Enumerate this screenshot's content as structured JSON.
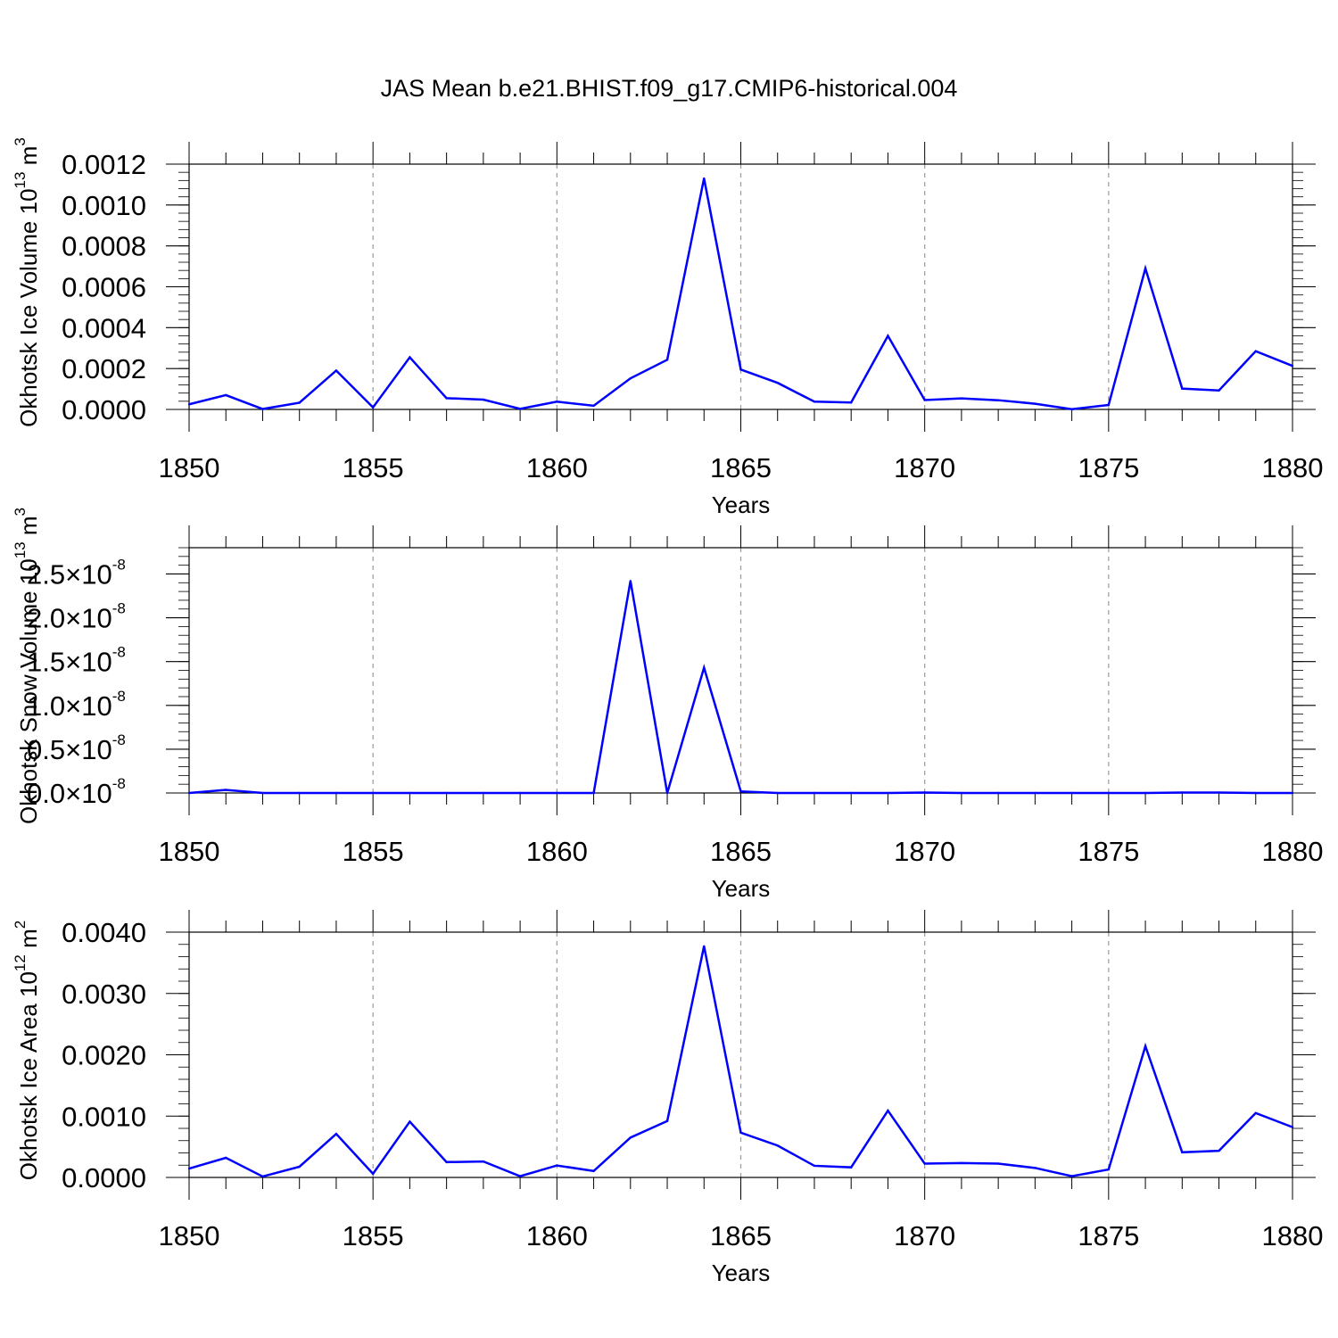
{
  "title": "JAS Mean b.e21.BHIST.f09_g17.CMIP6-historical.004",
  "colors": {
    "series": "#0000ff",
    "grid": "#9a9a9a",
    "axis": "#000000"
  },
  "chart_data": [
    {
      "type": "line",
      "ylabel_main": "Okhotsk Ice Volume 10",
      "ylabel_exp": "13",
      "ylabel_unit": " m",
      "ylabel_unit_exp": "3",
      "xlabel": "Years",
      "xlim": [
        1850,
        1880
      ],
      "ylim": [
        0,
        0.0012
      ],
      "xticks": [
        "1850",
        "1855",
        "1860",
        "1865",
        "1870",
        "1875",
        "1880"
      ],
      "xtick_values": [
        1850,
        1855,
        1860,
        1865,
        1870,
        1875,
        1880
      ],
      "yticks": [
        "0.0000",
        "0.0002",
        "0.0004",
        "0.0006",
        "0.0008",
        "0.0010",
        "0.0012"
      ],
      "ytick_values": [
        0,
        0.0002,
        0.0004,
        0.0006,
        0.0008,
        0.001,
        0.0012
      ],
      "x": [
        1850,
        1851,
        1852,
        1853,
        1854,
        1855,
        1856,
        1857,
        1858,
        1859,
        1860,
        1861,
        1862,
        1863,
        1864,
        1865,
        1866,
        1867,
        1868,
        1869,
        1870,
        1871,
        1872,
        1873,
        1874,
        1875,
        1876,
        1877,
        1878,
        1879,
        1880
      ],
      "values": [
        2.5e-05,
        7e-05,
        2e-06,
        3.3e-05,
        0.00019,
        1e-05,
        0.000255,
        5.5e-05,
        4.8e-05,
        3e-06,
        3.8e-05,
        1.8e-05,
        0.000152,
        0.000243,
        0.00113,
        0.000195,
        0.00013,
        3.8e-05,
        3.4e-05,
        0.00036,
        4.6e-05,
        5.4e-05,
        4.5e-05,
        2.8e-05,
        1e-06,
        2.2e-05,
        0.00069,
        0.000102,
        9.3e-05,
        0.000285,
        0.000213
      ]
    },
    {
      "type": "line",
      "ylabel_main": "Okhotsk Snow Volume 10",
      "ylabel_exp": "13",
      "ylabel_unit": " m",
      "ylabel_unit_exp": "3",
      "xlabel": "Years",
      "xlim": [
        1850,
        1880
      ],
      "ylim": [
        0,
        2.8e-08
      ],
      "xticks": [
        "1850",
        "1855",
        "1860",
        "1865",
        "1870",
        "1875",
        "1880"
      ],
      "xtick_values": [
        1850,
        1855,
        1860,
        1865,
        1870,
        1875,
        1880
      ],
      "yticks": [
        "0.0",
        "0.5",
        "1.0",
        "1.5",
        "2.0",
        "2.5"
      ],
      "ytick_values": [
        0,
        5e-09,
        1e-08,
        1.5e-08,
        2e-08,
        2.5e-08
      ],
      "ytick_sci_mult": "×10",
      "ytick_sci_exp": "-8",
      "x": [
        1850,
        1851,
        1852,
        1853,
        1854,
        1855,
        1856,
        1857,
        1858,
        1859,
        1860,
        1861,
        1862,
        1863,
        1864,
        1865,
        1866,
        1867,
        1868,
        1869,
        1870,
        1871,
        1872,
        1873,
        1874,
        1875,
        1876,
        1877,
        1878,
        1879,
        1880
      ],
      "values": [
        0,
        3.5e-10,
        0,
        0,
        0,
        0,
        0,
        0,
        0,
        0,
        0,
        0,
        2.42e-08,
        0,
        1.43e-08,
        1.8e-10,
        0,
        0,
        0,
        0,
        5e-11,
        0,
        0,
        0,
        0,
        0,
        0,
        5e-11,
        5e-11,
        0,
        0
      ]
    },
    {
      "type": "line",
      "ylabel_main": "Okhotsk Ice Area 10",
      "ylabel_exp": "12",
      "ylabel_unit": " m",
      "ylabel_unit_exp": "2",
      "xlabel": "Years",
      "xlim": [
        1850,
        1880
      ],
      "ylim": [
        0,
        0.004
      ],
      "xticks": [
        "1850",
        "1855",
        "1860",
        "1865",
        "1870",
        "1875",
        "1880"
      ],
      "xtick_values": [
        1850,
        1855,
        1860,
        1865,
        1870,
        1875,
        1880
      ],
      "yticks": [
        "0.0000",
        "0.0010",
        "0.0020",
        "0.0030",
        "0.0040"
      ],
      "ytick_values": [
        0,
        0.001,
        0.002,
        0.003,
        0.004
      ],
      "x": [
        1850,
        1851,
        1852,
        1853,
        1854,
        1855,
        1856,
        1857,
        1858,
        1859,
        1860,
        1861,
        1862,
        1863,
        1864,
        1865,
        1866,
        1867,
        1868,
        1869,
        1870,
        1871,
        1872,
        1873,
        1874,
        1875,
        1876,
        1877,
        1878,
        1879,
        1880
      ],
      "values": [
        0.000145,
        0.00032,
        1.5e-05,
        0.000175,
        0.00071,
        6e-05,
        0.00091,
        0.00025,
        0.00026,
        2e-05,
        0.000195,
        0.000105,
        0.00065,
        0.00092,
        0.00377,
        0.00073,
        0.00052,
        0.00019,
        0.000165,
        0.00109,
        0.000225,
        0.000235,
        0.000225,
        0.000155,
        2e-05,
        0.00013,
        0.00214,
        0.00041,
        0.000435,
        0.00105,
        0.00082
      ]
    }
  ]
}
